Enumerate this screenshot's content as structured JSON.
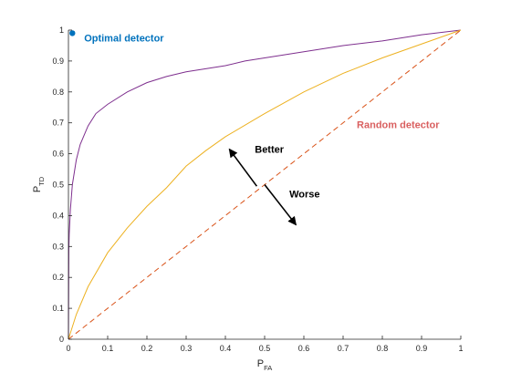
{
  "chart_data": {
    "type": "line",
    "title": "",
    "xlabel": {
      "main": "P",
      "sub": "FA"
    },
    "ylabel": {
      "main": "P",
      "sub": "TD"
    },
    "xlim": [
      0,
      1
    ],
    "ylim": [
      0,
      1
    ],
    "xticks": [
      "0",
      "0.1",
      "0.2",
      "0.3",
      "0.4",
      "0.5",
      "0.6",
      "0.7",
      "0.8",
      "0.9",
      "1"
    ],
    "yticks": [
      "0",
      "0.1",
      "0.2",
      "0.3",
      "0.4",
      "0.5",
      "0.6",
      "0.7",
      "0.8",
      "0.9",
      "1"
    ],
    "grid": false,
    "series": [
      {
        "color": "#7e2f8e",
        "style": "solid",
        "x": [
          0,
          0.001,
          0.002,
          0.005,
          0.01,
          0.02,
          0.03,
          0.05,
          0.07,
          0.1,
          0.15,
          0.2,
          0.25,
          0.3,
          0.35,
          0.4,
          0.45,
          0.5,
          0.6,
          0.7,
          0.8,
          0.9,
          1
        ],
        "y": [
          0,
          0.29,
          0.34,
          0.42,
          0.5,
          0.58,
          0.63,
          0.69,
          0.73,
          0.76,
          0.8,
          0.83,
          0.85,
          0.865,
          0.875,
          0.885,
          0.9,
          0.91,
          0.93,
          0.95,
          0.965,
          0.985,
          1
        ]
      },
      {
        "color": "#edb120",
        "style": "solid",
        "x": [
          0,
          0.02,
          0.05,
          0.1,
          0.15,
          0.2,
          0.25,
          0.3,
          0.35,
          0.4,
          0.5,
          0.6,
          0.7,
          0.8,
          0.9,
          1
        ],
        "y": [
          0,
          0.08,
          0.17,
          0.28,
          0.36,
          0.43,
          0.49,
          0.56,
          0.61,
          0.655,
          0.73,
          0.8,
          0.86,
          0.91,
          0.955,
          1
        ]
      },
      {
        "color": "#d95319",
        "style": "dashed",
        "x": [
          0,
          1
        ],
        "y": [
          0,
          1
        ]
      }
    ],
    "points": [
      {
        "x": 0.01,
        "y": 0.99,
        "color": "#0072bd"
      }
    ],
    "annotations": [
      {
        "text": "Optimal detector",
        "x": 0.04,
        "y": 0.975,
        "color": "#0072bd"
      },
      {
        "text": "Random detector",
        "x": 0.735,
        "y": 0.695,
        "color": "#d95f5f"
      },
      {
        "text": "Better",
        "x": 0.475,
        "y": 0.615,
        "color": "#000000"
      },
      {
        "text": "Worse",
        "x": 0.563,
        "y": 0.47,
        "color": "#000000"
      }
    ],
    "arrows": [
      {
        "from": [
          0.48,
          0.495
        ],
        "to": [
          0.41,
          0.615
        ],
        "color": "#000000",
        "label": "Better"
      },
      {
        "from": [
          0.5,
          0.5
        ],
        "to": [
          0.58,
          0.37
        ],
        "color": "#000000",
        "label": "Worse"
      }
    ]
  }
}
